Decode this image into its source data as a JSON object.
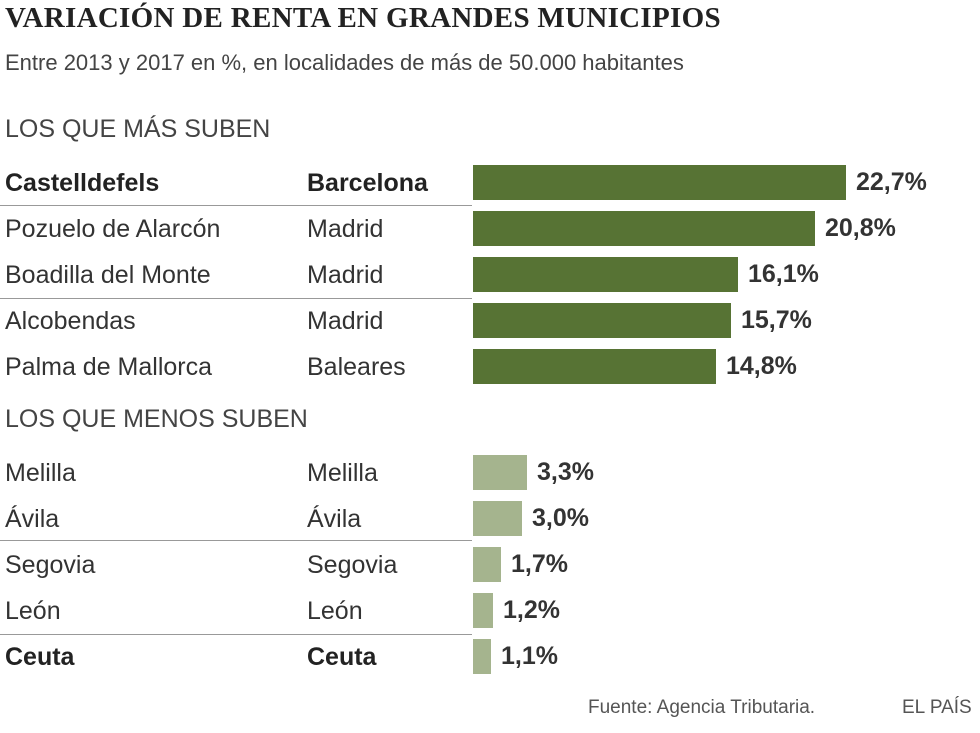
{
  "title": "VARIACIÓN DE RENTA EN GRANDES MUNICIPIOS",
  "subtitle": "Entre 2013 y 2017 en %, en localidades de más de 50.000 habitantes",
  "source": "Fuente: Agencia Tributaria.",
  "brand": "EL PAÍS",
  "colors": {
    "top_bar": "#577334",
    "bottom_bar": "#a5b48e"
  },
  "chart_data": {
    "type": "bar",
    "orientation": "horizontal",
    "unit": "%",
    "groups": [
      {
        "label": "LOS QUE MÁS SUBEN",
        "color": "#577334",
        "rows": [
          {
            "municipio": "Castelldefels",
            "provincia": "Barcelona",
            "value": 22.7,
            "label": "22,7%",
            "bold": true
          },
          {
            "municipio": "Pozuelo de Alarcón",
            "provincia": "Madrid",
            "value": 20.8,
            "label": "20,8%",
            "bold": false
          },
          {
            "municipio": "Boadilla del Monte",
            "provincia": "Madrid",
            "value": 16.1,
            "label": "16,1%",
            "bold": false
          },
          {
            "municipio": "Alcobendas",
            "provincia": "Madrid",
            "value": 15.7,
            "label": "15,7%",
            "bold": false
          },
          {
            "municipio": "Palma de Mallorca",
            "provincia": "Baleares",
            "value": 14.8,
            "label": "14,8%",
            "bold": false
          }
        ]
      },
      {
        "label": "LOS QUE MENOS SUBEN",
        "color": "#a5b48e",
        "rows": [
          {
            "municipio": "Melilla",
            "provincia": "Melilla",
            "value": 3.3,
            "label": "3,3%",
            "bold": false
          },
          {
            "municipio": "Ávila",
            "provincia": "Ávila",
            "value": 3.0,
            "label": "3,0%",
            "bold": false
          },
          {
            "municipio": "Segovia",
            "provincia": "Segovia",
            "value": 1.7,
            "label": "1,7%",
            "bold": false
          },
          {
            "municipio": "León",
            "provincia": "León",
            "value": 1.2,
            "label": "1,2%",
            "bold": false
          },
          {
            "municipio": "Ceuta",
            "provincia": "Ceuta",
            "value": 1.1,
            "label": "1,1%",
            "bold": true
          }
        ]
      }
    ],
    "xlim": [
      0,
      22.7
    ]
  }
}
